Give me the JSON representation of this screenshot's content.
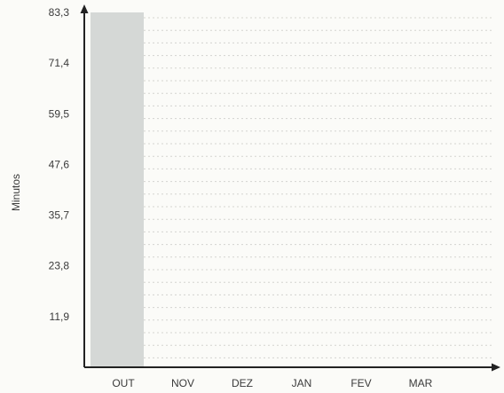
{
  "chart_data": {
    "type": "bar",
    "title": "",
    "xlabel": "",
    "ylabel": "Minutos",
    "categories": [
      "OUT",
      "NOV",
      "DEZ",
      "JAN",
      "FEV",
      "MAR"
    ],
    "series": [
      {
        "values": [
          83.3,
          null,
          null,
          null,
          null,
          null
        ],
        "color": "#d5d8d6"
      }
    ],
    "yticks": [
      "11,9",
      "23,8",
      "35,7",
      "47,6",
      "59,5",
      "71,4",
      "83,3"
    ],
    "ylim": [
      0,
      83.3
    ],
    "grid": true
  }
}
